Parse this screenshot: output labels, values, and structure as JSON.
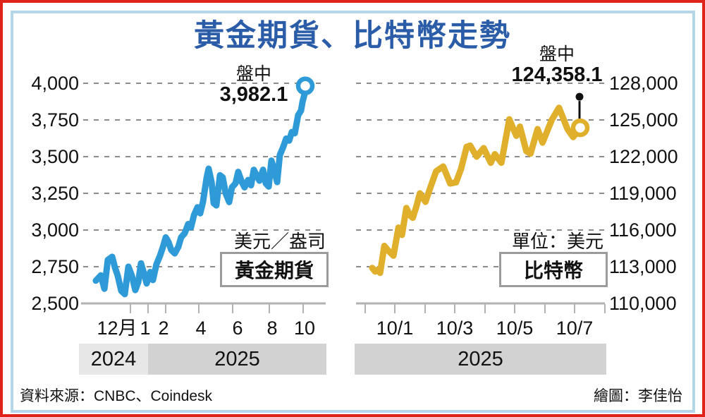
{
  "title": "黃金期貨、比特幣走勢",
  "footer": {
    "source": "資料來源：CNBC、Coindesk",
    "illustrator": "繪圖：李佳怡"
  },
  "colors": {
    "title_blue": "#2b5ca8",
    "gold_line": "#2f9ad8",
    "btc_line": "#e0b02c",
    "grid_gray": "#8c8c8c",
    "axis_gray": "#b2b2b2",
    "band_2024": "#e7e7e7",
    "band_2025": "#d2d2d2",
    "frame_red": "#e0231a",
    "frame_blue": "#b5d5e8"
  },
  "chart_data": [
    {
      "type": "line",
      "name": "黃金期貨",
      "unit_label": "美元／盎司",
      "series_box_label": "黃金期貨",
      "annotation": {
        "label": "盤中",
        "value": "3,982.1",
        "value_num": 3982.1
      },
      "y_ticks": [
        "4,000",
        "3,750",
        "3,500",
        "3,250",
        "3,000",
        "2,750",
        "2,500"
      ],
      "ylim": [
        2500,
        4000
      ],
      "x_ticks": [
        "12月",
        "1",
        "2",
        "4",
        "6",
        "8",
        "10"
      ],
      "year_bands": [
        "2024",
        "2025"
      ],
      "legend_position": "none",
      "grid": "dashed-horizontal",
      "line_color": "#2f9ad8",
      "points": [
        [
          0.003,
          2655
        ],
        [
          0.027,
          2691
        ],
        [
          0.044,
          2600
        ],
        [
          0.06,
          2796
        ],
        [
          0.081,
          2818
        ],
        [
          0.094,
          2745
        ],
        [
          0.107,
          2691
        ],
        [
          0.124,
          2586
        ],
        [
          0.141,
          2563
        ],
        [
          0.158,
          2750
        ],
        [
          0.174,
          2691
        ],
        [
          0.191,
          2591
        ],
        [
          0.205,
          2645
        ],
        [
          0.218,
          2773
        ],
        [
          0.232,
          2705
        ],
        [
          0.245,
          2636
        ],
        [
          0.262,
          2714
        ],
        [
          0.275,
          2659
        ],
        [
          0.292,
          2768
        ],
        [
          0.309,
          2827
        ],
        [
          0.322,
          2882
        ],
        [
          0.336,
          2950
        ],
        [
          0.349,
          2918
        ],
        [
          0.362,
          2864
        ],
        [
          0.379,
          2841
        ],
        [
          0.396,
          2886
        ],
        [
          0.409,
          2950
        ],
        [
          0.426,
          2977
        ],
        [
          0.443,
          3041
        ],
        [
          0.456,
          3018
        ],
        [
          0.47,
          3100
        ],
        [
          0.487,
          3155
        ],
        [
          0.5,
          3114
        ],
        [
          0.513,
          3191
        ],
        [
          0.53,
          3350
        ],
        [
          0.54,
          3418
        ],
        [
          0.554,
          3327
        ],
        [
          0.564,
          3182
        ],
        [
          0.577,
          3168
        ],
        [
          0.594,
          3373
        ],
        [
          0.607,
          3359
        ],
        [
          0.621,
          3250
        ],
        [
          0.638,
          3191
        ],
        [
          0.651,
          3291
        ],
        [
          0.668,
          3318
        ],
        [
          0.681,
          3396
        ],
        [
          0.698,
          3327
        ],
        [
          0.711,
          3291
        ],
        [
          0.728,
          3341
        ],
        [
          0.742,
          3305
        ],
        [
          0.755,
          3410
        ],
        [
          0.768,
          3373
        ],
        [
          0.782,
          3336
        ],
        [
          0.799,
          3410
        ],
        [
          0.812,
          3318
        ],
        [
          0.826,
          3296
        ],
        [
          0.839,
          3473
        ],
        [
          0.852,
          3410
        ],
        [
          0.866,
          3327
        ],
        [
          0.879,
          3510
        ],
        [
          0.896,
          3569
        ],
        [
          0.909,
          3623
        ],
        [
          0.923,
          3609
        ],
        [
          0.936,
          3668
        ],
        [
          0.95,
          3659
        ],
        [
          0.966,
          3782
        ],
        [
          0.98,
          3814
        ],
        [
          0.987,
          3873
        ],
        [
          0.997,
          3928
        ],
        [
          1.0,
          3982.1
        ]
      ]
    },
    {
      "type": "line",
      "name": "比特幣",
      "unit_label": "單位：美元",
      "series_box_label": "比特幣",
      "annotation": {
        "label": "盤中",
        "value": "124,358.1",
        "value_num": 124358.1
      },
      "y_ticks": [
        "128,000",
        "125,000",
        "122,000",
        "119,000",
        "116,000",
        "113,000",
        "110,000"
      ],
      "ylim": [
        110000,
        128000
      ],
      "x_ticks": [
        "10/1",
        "10/3",
        "10/5",
        "10/7"
      ],
      "year_bands": [
        "2025"
      ],
      "legend_position": "none",
      "grid": "dashed-horizontal",
      "line_color": "#e0b02c",
      "points": [
        [
          0.0,
          112900
        ],
        [
          0.014,
          112600
        ],
        [
          0.027,
          112750
        ],
        [
          0.038,
          112500
        ],
        [
          0.058,
          114700
        ],
        [
          0.078,
          114300
        ],
        [
          0.102,
          113900
        ],
        [
          0.126,
          116200
        ],
        [
          0.143,
          115600
        ],
        [
          0.164,
          117800
        ],
        [
          0.181,
          117200
        ],
        [
          0.195,
          117000
        ],
        [
          0.212,
          117900
        ],
        [
          0.229,
          119000
        ],
        [
          0.256,
          118300
        ],
        [
          0.28,
          119500
        ],
        [
          0.307,
          120800
        ],
        [
          0.341,
          121200
        ],
        [
          0.375,
          119800
        ],
        [
          0.403,
          119900
        ],
        [
          0.427,
          121000
        ],
        [
          0.454,
          122800
        ],
        [
          0.471,
          122900
        ],
        [
          0.502,
          122000
        ],
        [
          0.536,
          122700
        ],
        [
          0.57,
          121500
        ],
        [
          0.59,
          122200
        ],
        [
          0.621,
          121500
        ],
        [
          0.659,
          125050
        ],
        [
          0.693,
          123700
        ],
        [
          0.71,
          124450
        ],
        [
          0.741,
          122450
        ],
        [
          0.761,
          122250
        ],
        [
          0.795,
          124250
        ],
        [
          0.819,
          123150
        ],
        [
          0.863,
          125000
        ],
        [
          0.898,
          126000
        ],
        [
          0.939,
          124250
        ],
        [
          0.966,
          123600
        ],
        [
          1.0,
          124358.1
        ]
      ]
    }
  ]
}
